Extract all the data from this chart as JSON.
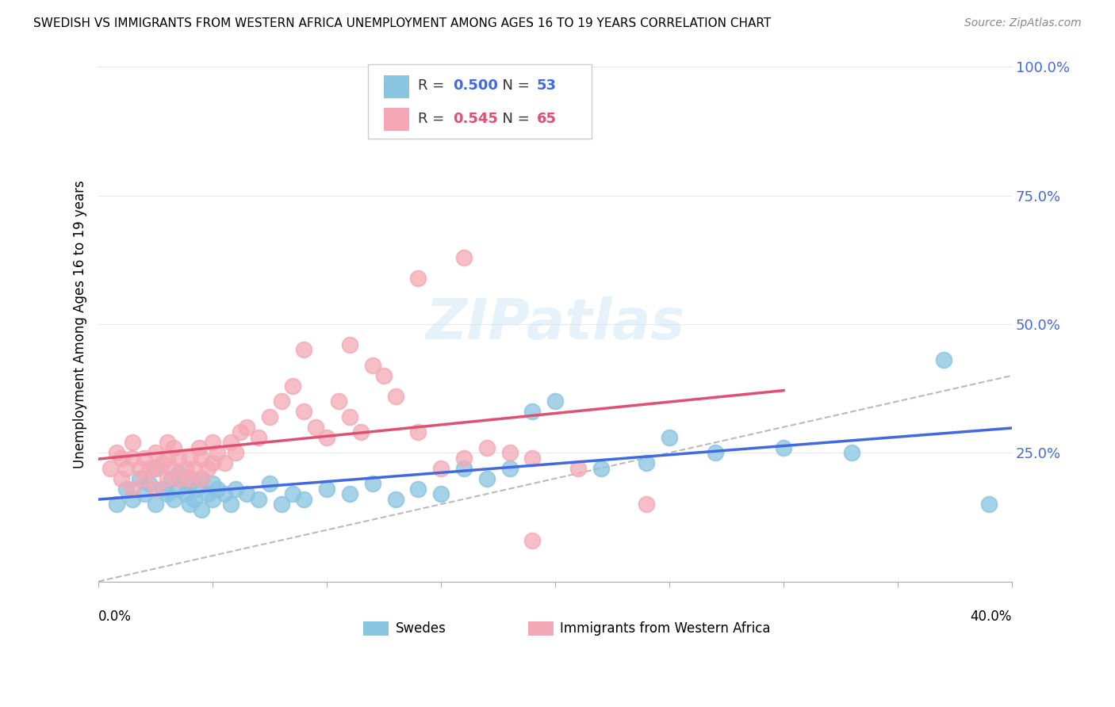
{
  "title": "SWEDISH VS IMMIGRANTS FROM WESTERN AFRICA UNEMPLOYMENT AMONG AGES 16 TO 19 YEARS CORRELATION CHART",
  "source_text": "Source: ZipAtlas.com",
  "ylabel": "Unemployment Among Ages 16 to 19 years",
  "xlim": [
    0.0,
    0.4
  ],
  "ylim": [
    0.0,
    1.0
  ],
  "yticks": [
    0.0,
    0.25,
    0.5,
    0.75,
    1.0
  ],
  "yticklabels": [
    "",
    "25.0%",
    "50.0%",
    "75.0%",
    "100.0%"
  ],
  "blue_R": 0.5,
  "blue_N": 53,
  "pink_R": 0.545,
  "pink_N": 65,
  "blue_color": "#89C4E1",
  "pink_color": "#F4A8B5",
  "blue_line_color": "#4169E1",
  "pink_line_color": "#E05070",
  "diag_color": "#BBBBBB",
  "watermark": "ZIPatlas",
  "legend_label_blue": "Swedes",
  "legend_label_pink": "Immigrants from Western Africa",
  "blue_scatter_x": [
    0.008,
    0.012,
    0.015,
    0.018,
    0.02,
    0.022,
    0.025,
    0.025,
    0.028,
    0.03,
    0.032,
    0.033,
    0.035,
    0.035,
    0.038,
    0.04,
    0.04,
    0.042,
    0.043,
    0.045,
    0.045,
    0.048,
    0.05,
    0.05,
    0.052,
    0.055,
    0.058,
    0.06,
    0.065,
    0.07,
    0.075,
    0.08,
    0.085,
    0.09,
    0.1,
    0.11,
    0.12,
    0.13,
    0.14,
    0.15,
    0.16,
    0.17,
    0.18,
    0.19,
    0.2,
    0.22,
    0.24,
    0.25,
    0.27,
    0.3,
    0.33,
    0.37,
    0.39
  ],
  "blue_scatter_y": [
    0.15,
    0.18,
    0.16,
    0.2,
    0.17,
    0.19,
    0.15,
    0.22,
    0.18,
    0.17,
    0.2,
    0.16,
    0.18,
    0.21,
    0.17,
    0.15,
    0.19,
    0.16,
    0.18,
    0.14,
    0.2,
    0.17,
    0.16,
    0.19,
    0.18,
    0.17,
    0.15,
    0.18,
    0.17,
    0.16,
    0.19,
    0.15,
    0.17,
    0.16,
    0.18,
    0.17,
    0.19,
    0.16,
    0.18,
    0.17,
    0.22,
    0.2,
    0.22,
    0.33,
    0.35,
    0.22,
    0.23,
    0.28,
    0.25,
    0.26,
    0.25,
    0.43,
    0.15
  ],
  "pink_scatter_x": [
    0.005,
    0.008,
    0.01,
    0.01,
    0.012,
    0.015,
    0.015,
    0.015,
    0.018,
    0.02,
    0.02,
    0.022,
    0.025,
    0.025,
    0.025,
    0.028,
    0.03,
    0.03,
    0.03,
    0.032,
    0.033,
    0.035,
    0.035,
    0.038,
    0.04,
    0.04,
    0.042,
    0.044,
    0.045,
    0.045,
    0.048,
    0.05,
    0.05,
    0.052,
    0.055,
    0.058,
    0.06,
    0.062,
    0.065,
    0.07,
    0.075,
    0.08,
    0.085,
    0.09,
    0.095,
    0.1,
    0.105,
    0.11,
    0.115,
    0.12,
    0.125,
    0.13,
    0.14,
    0.15,
    0.16,
    0.17,
    0.18,
    0.19,
    0.09,
    0.11,
    0.14,
    0.16,
    0.19,
    0.21,
    0.24
  ],
  "pink_scatter_y": [
    0.22,
    0.25,
    0.2,
    0.24,
    0.22,
    0.18,
    0.24,
    0.27,
    0.22,
    0.2,
    0.24,
    0.22,
    0.18,
    0.22,
    0.25,
    0.23,
    0.2,
    0.24,
    0.27,
    0.22,
    0.26,
    0.2,
    0.24,
    0.22,
    0.2,
    0.24,
    0.22,
    0.26,
    0.2,
    0.24,
    0.22,
    0.23,
    0.27,
    0.25,
    0.23,
    0.27,
    0.25,
    0.29,
    0.3,
    0.28,
    0.32,
    0.35,
    0.38,
    0.33,
    0.3,
    0.28,
    0.35,
    0.32,
    0.29,
    0.42,
    0.4,
    0.36,
    0.29,
    0.22,
    0.24,
    0.26,
    0.25,
    0.24,
    0.45,
    0.46,
    0.59,
    0.63,
    0.08,
    0.22,
    0.15
  ]
}
